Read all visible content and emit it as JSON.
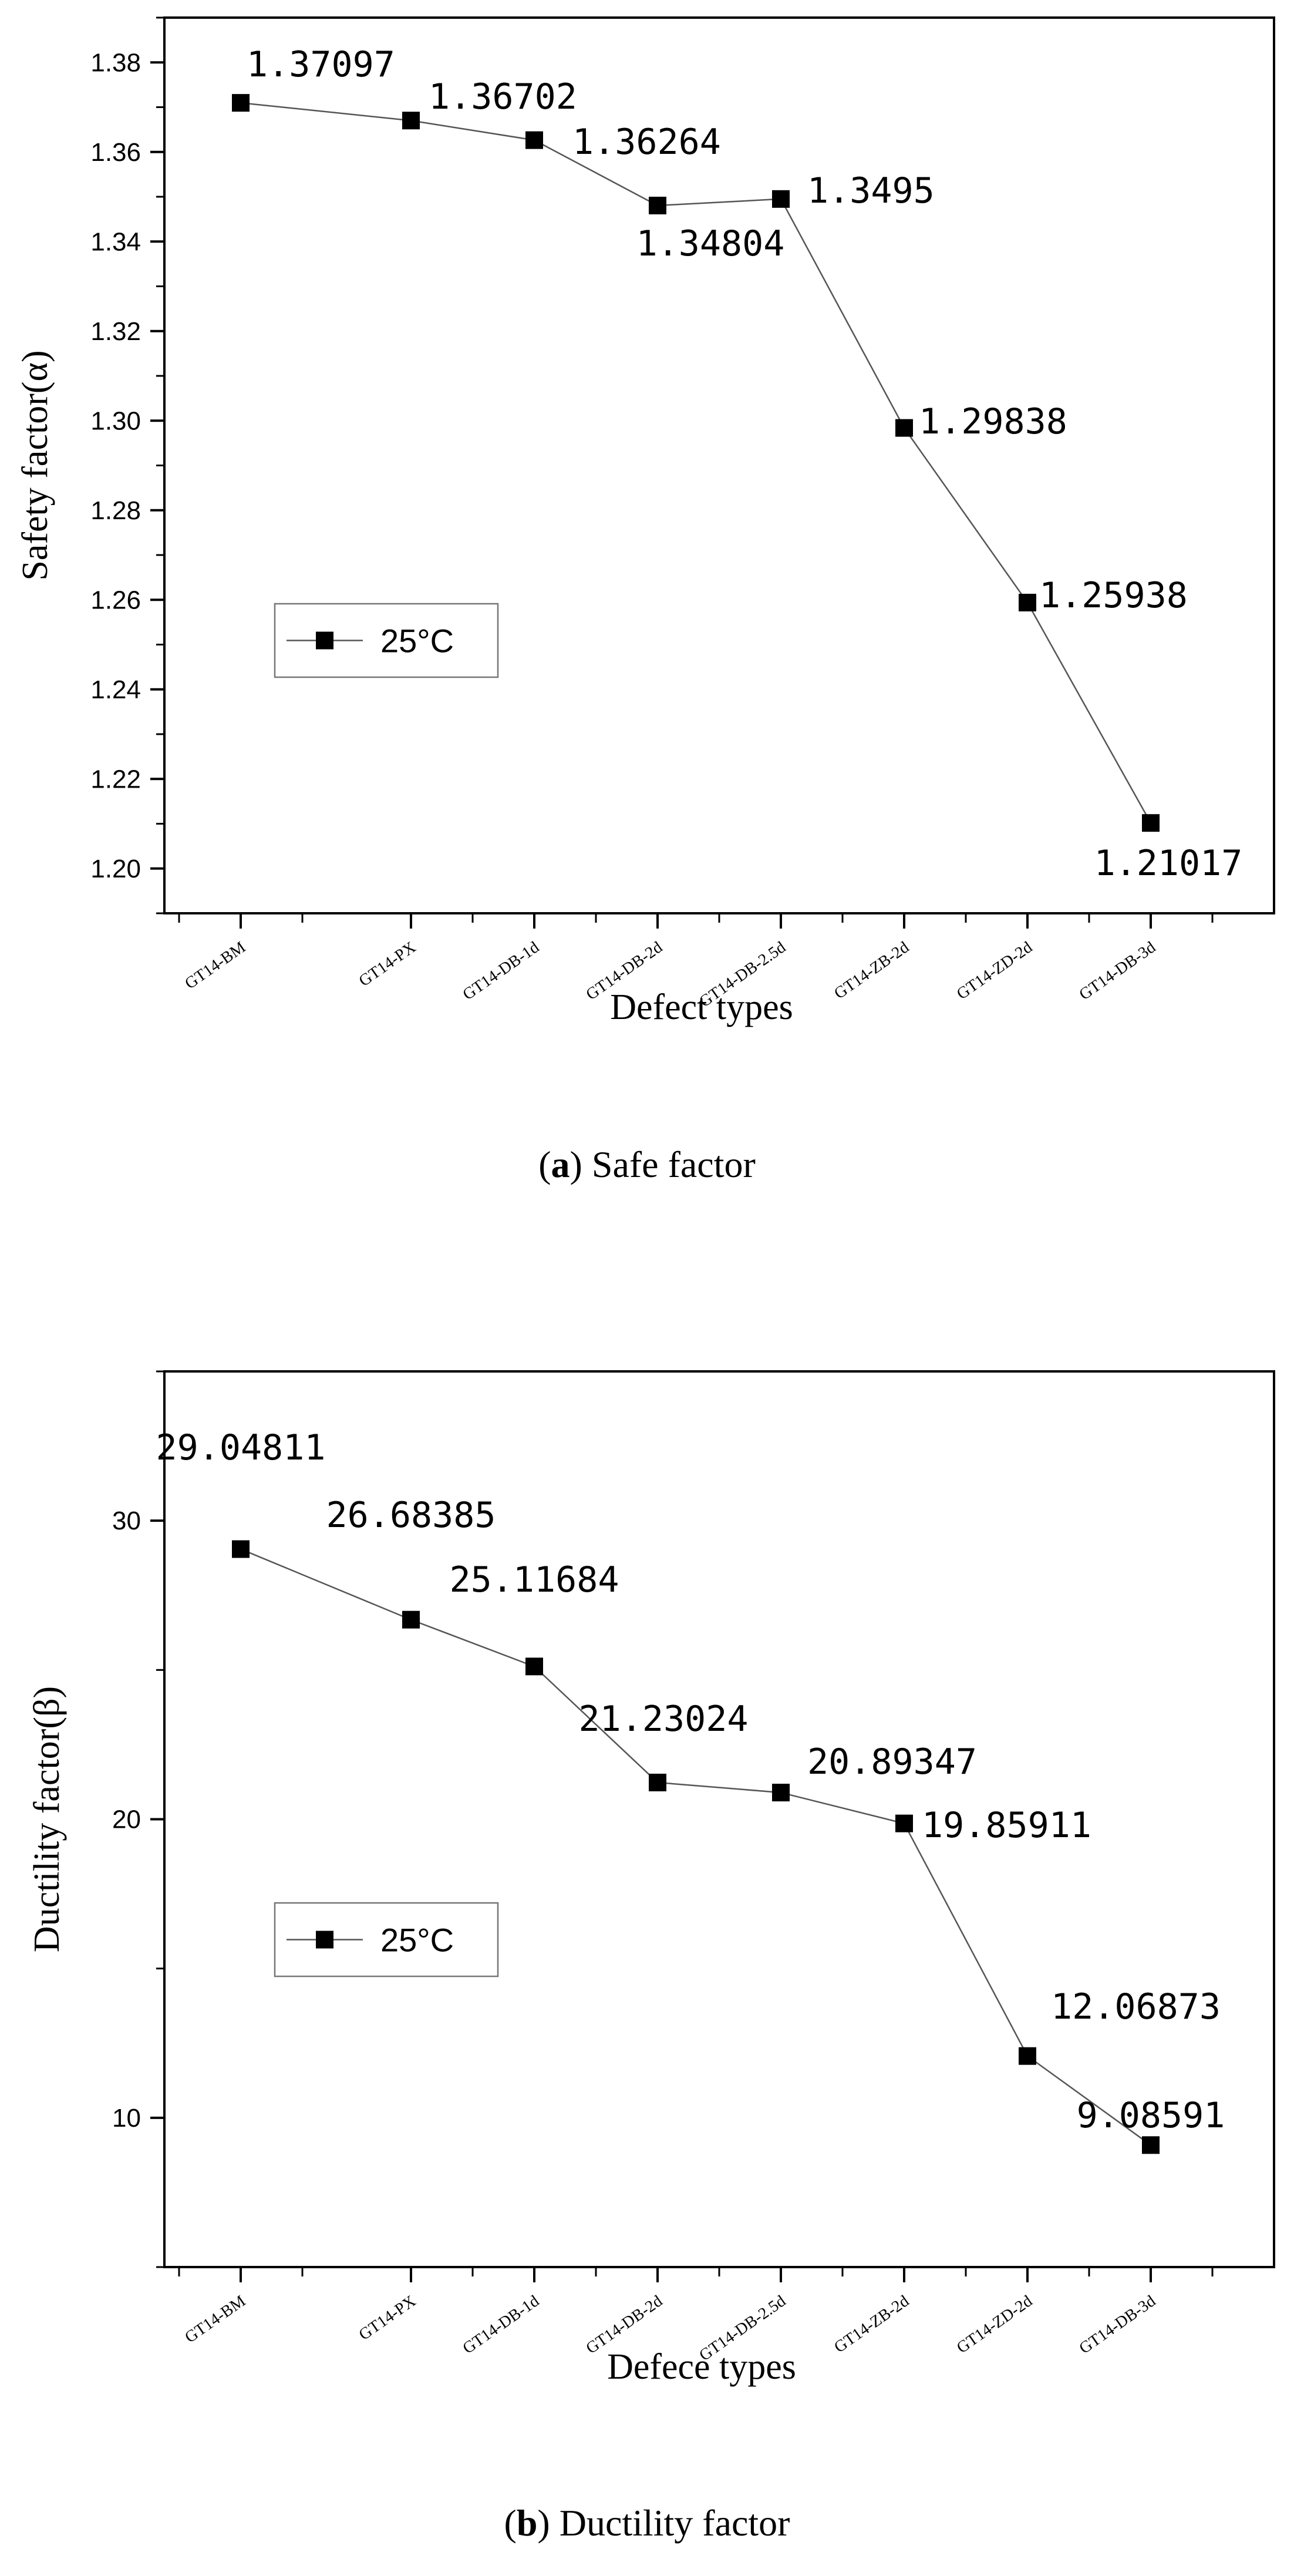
{
  "chart_data": [
    {
      "type": "line",
      "categories": [
        "GT14-BM",
        "GT14-PX",
        "GT14-DB-1d",
        "GT14-DB-2d",
        "GT14-DB-2.5d",
        "GT14-ZB-2d",
        "GT14-ZD-2d",
        "GT14-DB-3d"
      ],
      "series": [
        {
          "name": "25°C",
          "values": [
            1.37097,
            1.36702,
            1.36264,
            1.34804,
            1.3495,
            1.29838,
            1.25938,
            1.21017
          ]
        }
      ],
      "data_labels": [
        "1.37097",
        "1.36702",
        "1.36264",
        "1.34804",
        "1.3495",
        "1.29838",
        "1.25938",
        "1.21017"
      ],
      "xlabel": "Defect types",
      "ylabel": "Safety factor(α)",
      "ylim": [
        1.19,
        1.39
      ],
      "yticks": [
        "1.20",
        "1.22",
        "1.24",
        "1.26",
        "1.28",
        "1.30",
        "1.32",
        "1.34",
        "1.36",
        "1.38"
      ],
      "legend": "25°C",
      "legend_position": "center-left",
      "caption_letter": "a",
      "caption_text": "Safe factor"
    },
    {
      "type": "line",
      "categories": [
        "GT14-BM",
        "GT14-PX",
        "GT14-DB-1d",
        "GT14-DB-2d",
        "GT14-DB-2.5d",
        "GT14-ZB-2d",
        "GT14-ZD-2d",
        "GT14-DB-3d"
      ],
      "series": [
        {
          "name": "25°C",
          "values": [
            29.04811,
            26.68385,
            25.11684,
            21.23024,
            20.89347,
            19.85911,
            12.06873,
            9.08591
          ]
        }
      ],
      "data_labels": [
        "29.04811",
        "26.68385",
        "25.11684",
        "21.23024",
        "20.89347",
        "19.85911",
        "12.06873",
        "9.08591"
      ],
      "xlabel": "Defece types",
      "ylabel": "Ductility factor(β)",
      "ylim": [
        5,
        35
      ],
      "yticks": [
        "10",
        "20",
        "30"
      ],
      "legend": "25°C",
      "legend_position": "center-left",
      "caption_letter": "b",
      "caption_text": "Ductility factor"
    }
  ]
}
